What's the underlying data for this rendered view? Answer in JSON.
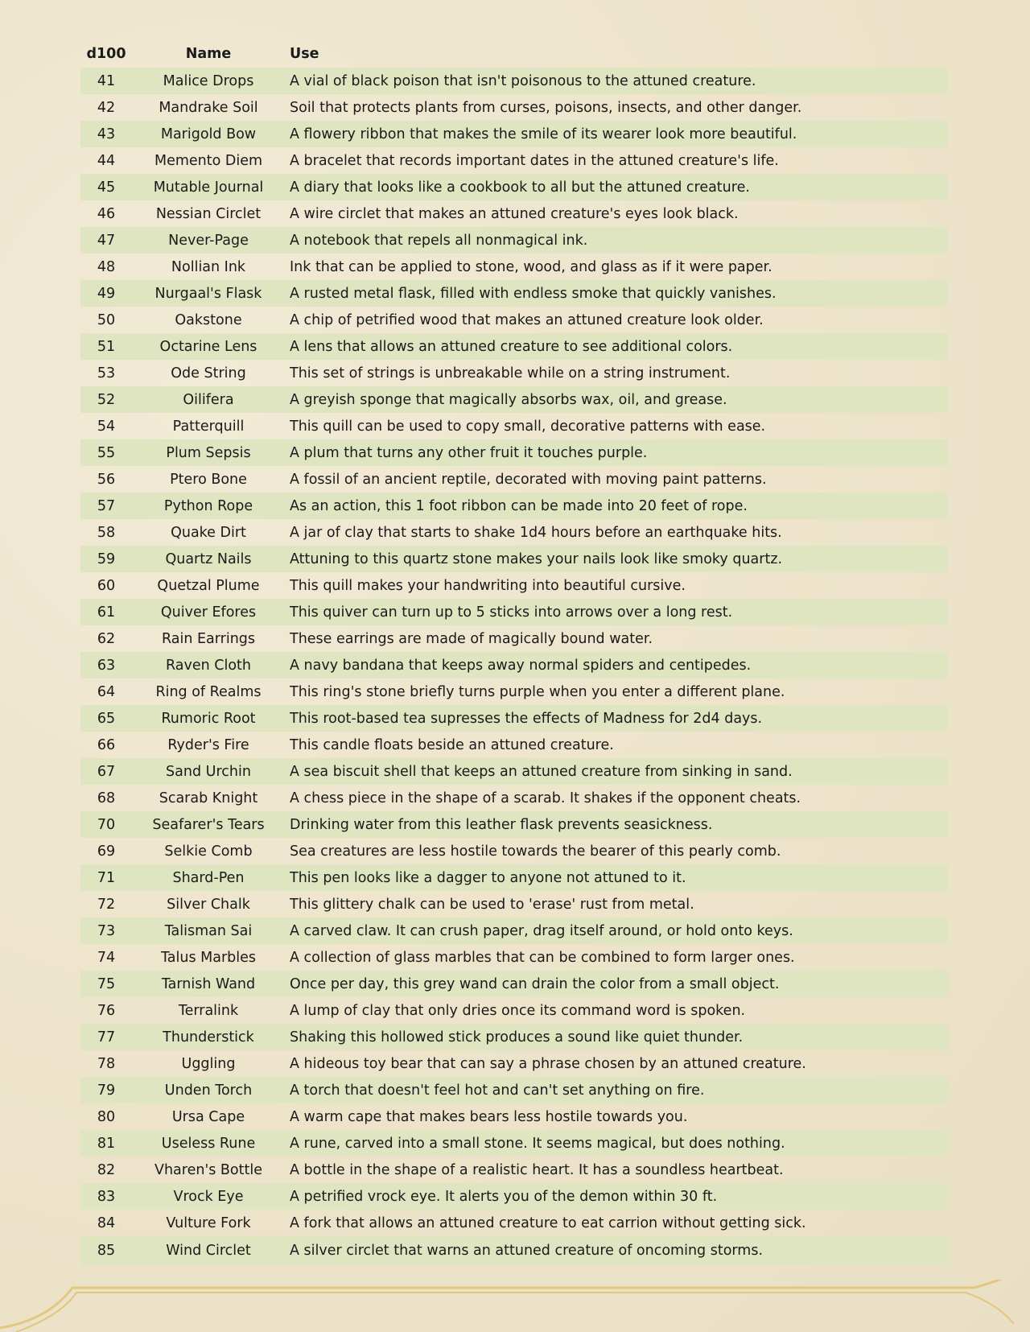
{
  "table": {
    "headers": [
      "d100",
      "Name",
      "Use"
    ],
    "rows": [
      [
        "41",
        "Malice Drops",
        "A vial of black poison that isn't poisonous to the attuned creature."
      ],
      [
        "42",
        "Mandrake Soil",
        "Soil that protects plants from curses, poisons, insects, and other danger."
      ],
      [
        "43",
        "Marigold Bow",
        "A flowery ribbon that makes the smile of its wearer look more beautiful."
      ],
      [
        "44",
        "Memento Diem",
        "A bracelet that records important dates in the attuned creature's life."
      ],
      [
        "45",
        "Mutable Journal",
        "A diary that looks like a cookbook to all but the attuned creature."
      ],
      [
        "46",
        "Nessian Circlet",
        "A wire circlet that makes an attuned creature's eyes look black."
      ],
      [
        "47",
        "Never-Page",
        "A notebook that repels all nonmagical ink."
      ],
      [
        "48",
        "Nollian Ink",
        "Ink that can be applied to stone, wood, and glass as if it were paper."
      ],
      [
        "49",
        "Nurgaal's Flask",
        "A rusted metal flask, filled with endless smoke that quickly vanishes."
      ],
      [
        "50",
        "Oakstone",
        "A chip of petrified wood that makes an attuned creature look older."
      ],
      [
        "51",
        "Octarine Lens",
        "A lens that allows an attuned creature to see additional colors."
      ],
      [
        "53",
        "Ode String",
        "This set of strings is unbreakable while on a string instrument."
      ],
      [
        "52",
        "Oilifera",
        "A greyish sponge that magically absorbs wax, oil, and grease."
      ],
      [
        "54",
        "Patterquill",
        "This quill can be used to copy small, decorative patterns with ease."
      ],
      [
        "55",
        "Plum Sepsis",
        "A plum that turns any other fruit it touches purple."
      ],
      [
        "56",
        "Ptero Bone",
        "A fossil of an ancient reptile, decorated with moving paint patterns."
      ],
      [
        "57",
        "Python Rope",
        "As an action, this 1 foot ribbon can be made into 20 feet of rope."
      ],
      [
        "58",
        "Quake Dirt",
        "A jar of clay that starts to shake 1d4 hours before an earthquake hits."
      ],
      [
        "59",
        "Quartz Nails",
        "Attuning to this quartz stone makes your nails look like smoky quartz."
      ],
      [
        "60",
        "Quetzal Plume",
        "This quill makes your handwriting into beautiful cursive."
      ],
      [
        "61",
        "Quiver Efores",
        "This quiver can turn up to 5 sticks into arrows over a long rest."
      ],
      [
        "62",
        "Rain Earrings",
        "These earrings are made of magically bound water."
      ],
      [
        "63",
        "Raven Cloth",
        "A navy bandana that keeps away normal spiders and centipedes."
      ],
      [
        "64",
        "Ring of Realms",
        "This ring's stone briefly turns purple when you enter a different plane."
      ],
      [
        "65",
        "Rumoric Root",
        "This root-based tea supresses the effects of Madness for 2d4 days."
      ],
      [
        "66",
        "Ryder's Fire",
        "This candle floats beside an attuned creature."
      ],
      [
        "67",
        "Sand Urchin",
        "A sea biscuit shell that keeps an attuned creature from sinking in sand."
      ],
      [
        "68",
        "Scarab Knight",
        "A chess piece in the shape of a scarab. It shakes if the opponent cheats."
      ],
      [
        "70",
        "Seafarer's Tears",
        "Drinking water from this leather flask prevents seasickness."
      ],
      [
        "69",
        "Selkie Comb",
        "Sea creatures are less hostile towards the bearer of this pearly comb."
      ],
      [
        "71",
        "Shard-Pen",
        "This pen looks like a dagger to anyone not attuned to it."
      ],
      [
        "72",
        "Silver Chalk",
        "This glittery chalk can be used to 'erase' rust from metal."
      ],
      [
        "73",
        "Talisman Sai",
        "A carved claw. It can crush paper, drag itself around, or hold onto keys."
      ],
      [
        "74",
        "Talus Marbles",
        "A collection of glass marbles that can be combined to form larger ones."
      ],
      [
        "75",
        "Tarnish Wand",
        "Once per day, this grey wand can drain the color from a small object."
      ],
      [
        "76",
        "Terralink",
        "A lump of clay that only dries once its command word is spoken."
      ],
      [
        "77",
        "Thunderstick",
        "Shaking this hollowed stick produces a sound like quiet thunder."
      ],
      [
        "78",
        "Uggling",
        "A hideous toy bear that can say a phrase chosen by an attuned creature."
      ],
      [
        "79",
        "Unden Torch",
        "A torch that doesn't feel hot and can't set anything on fire."
      ],
      [
        "80",
        "Ursa Cape",
        "A warm cape that makes bears less hostile towards you."
      ],
      [
        "81",
        "Useless Rune",
        "A rune, carved into a small stone. It seems magical, but does nothing."
      ],
      [
        "82",
        "Vharen's Bottle",
        "A bottle in the shape of a realistic heart. It has a soundless heartbeat."
      ],
      [
        "83",
        "Vrock Eye",
        "A petrified vrock eye. It alerts you of the demon within 30 ft."
      ],
      [
        "84",
        "Vulture Fork",
        "A fork that allows an attuned creature to eat carrion without getting sick."
      ],
      [
        "85",
        "Wind Circlet",
        "A silver circlet that warns an attuned creature of oncoming storms."
      ]
    ]
  },
  "colors": {
    "row_shade": "#e0e5c1",
    "background": "#eee5cd",
    "border": "#e3c77f"
  }
}
